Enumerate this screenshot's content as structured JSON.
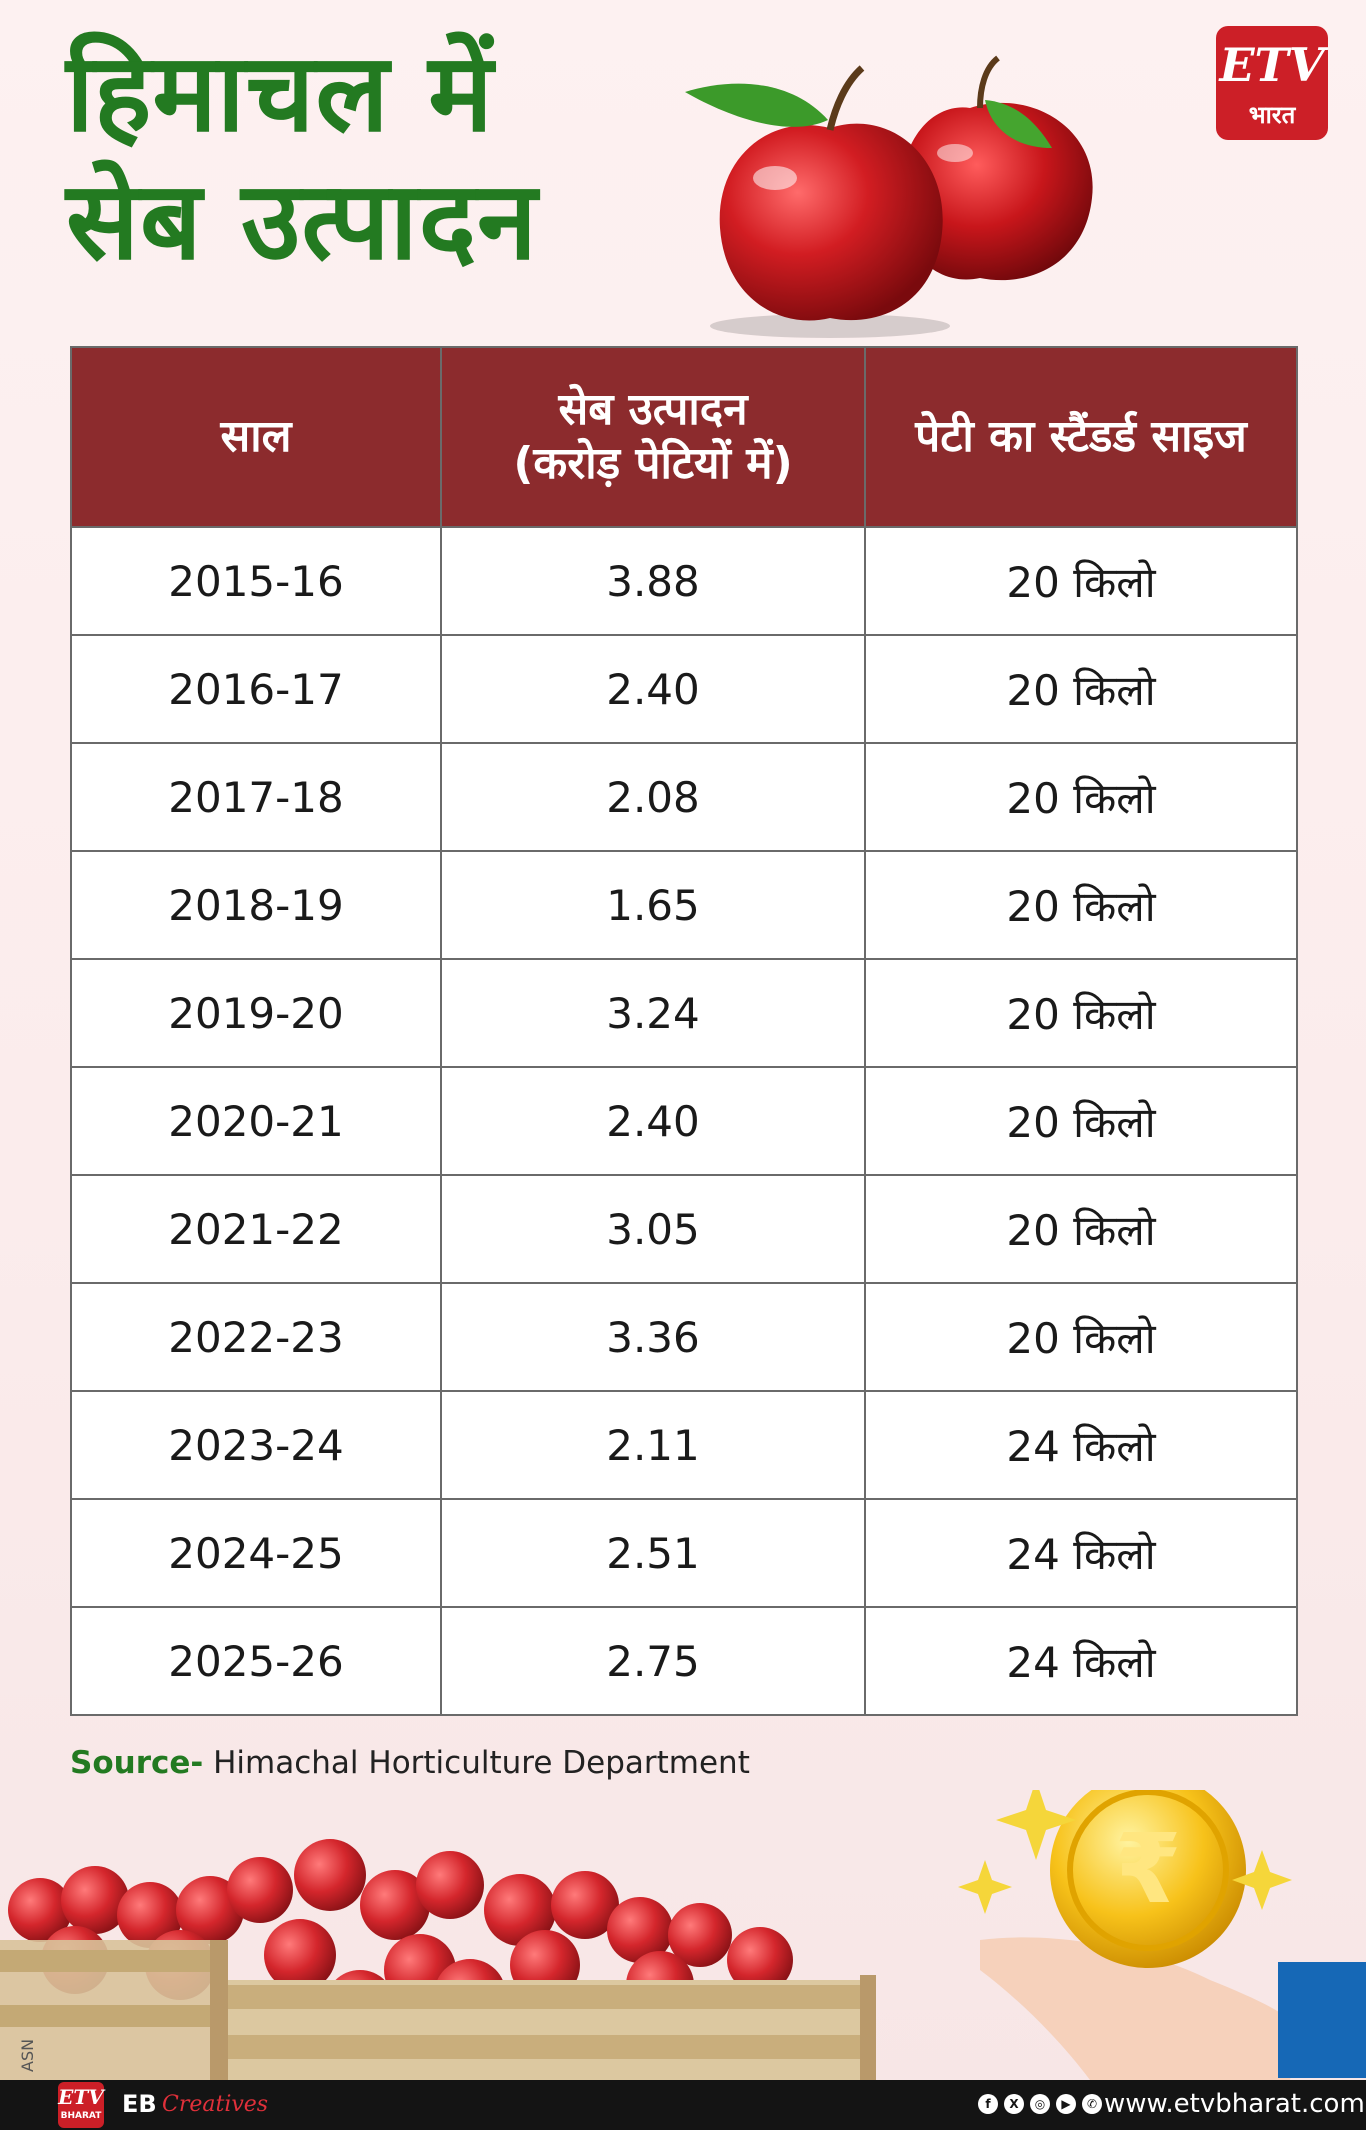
{
  "title": {
    "line1": "हिमाचल में",
    "line2": "सेब उत्पादन"
  },
  "logo": {
    "etv": "ETV",
    "bharat": "भारत"
  },
  "table": {
    "headers": {
      "year": "साल",
      "production_line1": "सेब उत्पादन",
      "production_line2": "(करोड़ पेटियों में)",
      "box_size": "पेटी का स्टैंडर्ड साइज"
    },
    "rows": [
      {
        "year": "2015-16",
        "production": "3.88",
        "size": "20 किलो"
      },
      {
        "year": "2016-17",
        "production": "2.40",
        "size": "20 किलो"
      },
      {
        "year": "2017-18",
        "production": "2.08",
        "size": "20 किलो"
      },
      {
        "year": "2018-19",
        "production": "1.65",
        "size": "20 किलो"
      },
      {
        "year": "2019-20",
        "production": "3.24",
        "size": "20 किलो"
      },
      {
        "year": "2020-21",
        "production": "2.40",
        "size": "20 किलो"
      },
      {
        "year": "2021-22",
        "production": "3.05",
        "size": "20 किलो"
      },
      {
        "year": "2022-23",
        "production": "3.36",
        "size": "20 किलो"
      },
      {
        "year": "2023-24",
        "production": "2.11",
        "size": "24 किलो"
      },
      {
        "year": "2024-25",
        "production": "2.51",
        "size": "24 किलो"
      },
      {
        "year": "2025-26",
        "production": "2.75",
        "size": "24 किलो"
      }
    ]
  },
  "source": {
    "label": "Source-",
    "text": "Himachal Horticulture Department"
  },
  "footer": {
    "asn": "ASN",
    "logo": "ETV",
    "logo_sub": "BHARAT",
    "eb": "EB",
    "creatives": "Creatives",
    "url": "www.etvbharat.com"
  },
  "colors": {
    "title_green": "#237a21",
    "header_maroon": "#8c2b2d",
    "brand_red": "#cc1f27",
    "accent_blue": "#1668b6"
  }
}
